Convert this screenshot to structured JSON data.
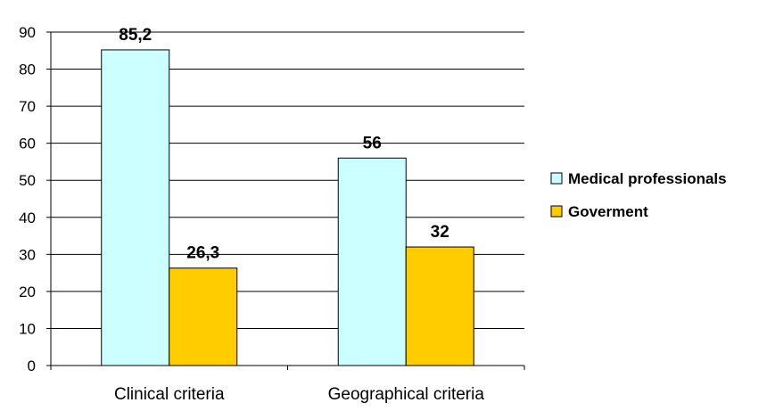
{
  "chart_data": {
    "type": "bar",
    "categories": [
      "Clinical criteria",
      "Geographical criteria"
    ],
    "series": [
      {
        "name": "Medical professionals",
        "values": [
          85.2,
          56
        ],
        "labels": [
          "85,2",
          "56"
        ],
        "color": "#CCFFFF"
      },
      {
        "name": "Goverment",
        "values": [
          26.3,
          32
        ],
        "labels": [
          "26,3",
          "32"
        ],
        "color": "#FFCC00"
      }
    ],
    "ylim": [
      0,
      90
    ],
    "yticks": [
      0,
      10,
      20,
      30,
      40,
      50,
      60,
      70,
      80,
      90
    ],
    "grid": true,
    "legend_position": "right",
    "title": "",
    "xlabel": "",
    "ylabel": ""
  }
}
